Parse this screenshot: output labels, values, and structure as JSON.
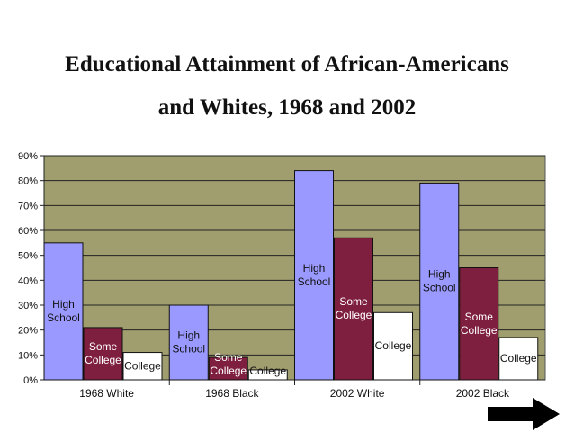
{
  "title": {
    "line1": "Educational Attainment of African-Americans",
    "line2": "and Whites, 1968 and 2002"
  },
  "colors": {
    "plot_background": "#a09d6f",
    "high_school": "#9a99ff",
    "some_college": "#7f1f3f",
    "college": "#ffffff",
    "arrow": "#000000"
  },
  "chart_data": {
    "type": "bar",
    "categories": [
      "1968 White",
      "1968 Black",
      "2002 White",
      "2002 Black"
    ],
    "series": [
      {
        "key": "high_school",
        "labels": [
          "High",
          "School"
        ],
        "values": [
          55,
          30,
          84,
          79
        ]
      },
      {
        "key": "some_college",
        "labels": [
          "Some",
          "College"
        ],
        "values": [
          21,
          9,
          57,
          45
        ]
      },
      {
        "key": "college",
        "labels": [
          "College"
        ],
        "values": [
          11,
          4,
          27,
          17
        ]
      }
    ],
    "ylim": [
      0,
      90
    ],
    "yticks": [
      "0%",
      "10%",
      "20%",
      "30%",
      "40%",
      "50%",
      "60%",
      "70%",
      "80%",
      "90%"
    ],
    "grid": true,
    "legend": "none"
  },
  "nav": {
    "next_icon": "right-arrow-icon"
  }
}
